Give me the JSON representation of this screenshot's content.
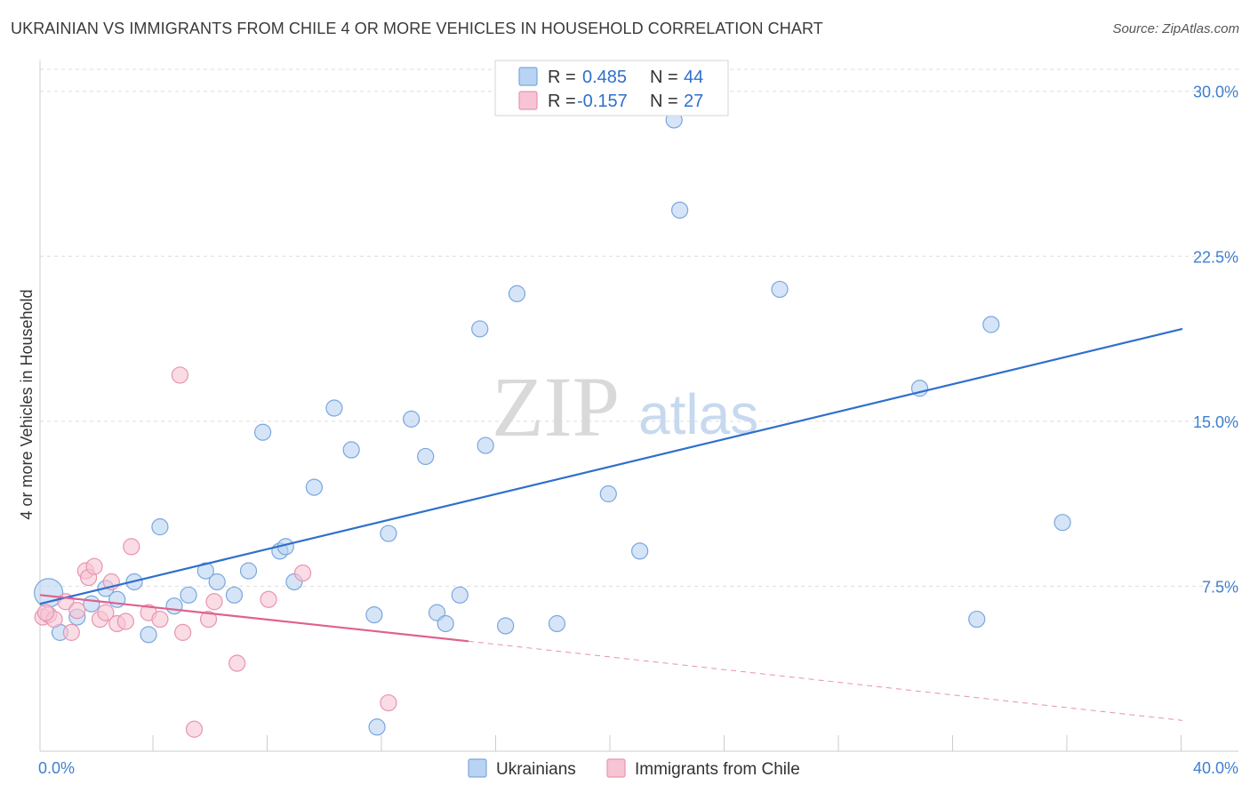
{
  "header": {
    "title": "UKRAINIAN VS IMMIGRANTS FROM CHILE 4 OR MORE VEHICLES IN HOUSEHOLD CORRELATION CHART",
    "source": "Source: ZipAtlas.com"
  },
  "legend": {
    "rows": [
      {
        "r_label": "R =",
        "r_value": "0.485",
        "n_label": "N =",
        "n_value": "44"
      },
      {
        "r_label": "R =",
        "r_value": "-0.157",
        "n_label": "N =",
        "n_value": "27"
      }
    ]
  },
  "watermark": {
    "zip": "ZIP",
    "atlas": "atlas"
  },
  "colors": {
    "ukrainians_fill": "#b9d3f2",
    "ukrainians_stroke": "#7aa6de",
    "ukrainians_line": "#2f6fcc",
    "chile_fill": "#f7c4d3",
    "chile_stroke": "#e894b0",
    "chile_line": "#e0608f",
    "tick_label": "#3f7fd0",
    "grid": "#dddddd"
  },
  "chart_data": {
    "type": "scatter",
    "title": "UKRAINIAN VS IMMIGRANTS FROM CHILE 4 OR MORE VEHICLES IN HOUSEHOLD CORRELATION CHART",
    "xlabel": "",
    "ylabel": "4 or more Vehicles in Household",
    "xlim": [
      0,
      40
    ],
    "ylim": [
      0,
      31
    ],
    "x_tick_labels": [
      "0.0%",
      "40.0%"
    ],
    "y_ticks": [
      7.5,
      15.0,
      22.5,
      30.0
    ],
    "y_tick_labels": [
      "7.5%",
      "15.0%",
      "22.5%",
      "30.0%"
    ],
    "grid": true,
    "legend_position": "top-center",
    "series": [
      {
        "name": "Ukrainians",
        "r": 0.485,
        "n": 44,
        "points": [
          [
            0.3,
            7.2
          ],
          [
            0.7,
            5.4
          ],
          [
            1.3,
            6.1
          ],
          [
            1.8,
            6.7
          ],
          [
            2.3,
            7.4
          ],
          [
            2.7,
            6.9
          ],
          [
            3.3,
            7.7
          ],
          [
            3.8,
            5.3
          ],
          [
            4.2,
            10.2
          ],
          [
            4.7,
            6.6
          ],
          [
            5.2,
            7.1
          ],
          [
            5.8,
            8.2
          ],
          [
            6.2,
            7.7
          ],
          [
            6.8,
            7.1
          ],
          [
            7.3,
            8.2
          ],
          [
            7.8,
            14.5
          ],
          [
            8.4,
            9.1
          ],
          [
            8.6,
            9.3
          ],
          [
            8.9,
            7.7
          ],
          [
            9.6,
            12.0
          ],
          [
            10.3,
            15.6
          ],
          [
            10.9,
            13.7
          ],
          [
            11.7,
            6.2
          ],
          [
            11.8,
            1.1
          ],
          [
            12.2,
            9.9
          ],
          [
            13.0,
            15.1
          ],
          [
            13.5,
            13.4
          ],
          [
            13.9,
            6.3
          ],
          [
            14.2,
            5.8
          ],
          [
            14.7,
            7.1
          ],
          [
            15.4,
            19.2
          ],
          [
            15.6,
            13.9
          ],
          [
            16.3,
            5.7
          ],
          [
            16.7,
            20.8
          ],
          [
            18.1,
            5.8
          ],
          [
            19.9,
            11.7
          ],
          [
            21.0,
            9.1
          ],
          [
            22.2,
            28.7
          ],
          [
            22.4,
            24.6
          ],
          [
            25.9,
            21.0
          ],
          [
            30.8,
            16.5
          ],
          [
            32.8,
            6.0
          ],
          [
            33.3,
            19.4
          ],
          [
            35.8,
            10.4
          ]
        ],
        "trend": {
          "x0": 0,
          "y0": 6.7,
          "x1": 40,
          "y1": 19.2
        }
      },
      {
        "name": "Immigrants from Chile",
        "r": -0.157,
        "n": 27,
        "points": [
          [
            0.1,
            6.1
          ],
          [
            0.3,
            6.2
          ],
          [
            0.5,
            6.0
          ],
          [
            0.9,
            6.8
          ],
          [
            1.1,
            5.4
          ],
          [
            1.3,
            6.4
          ],
          [
            1.6,
            8.2
          ],
          [
            1.7,
            7.9
          ],
          [
            1.9,
            8.4
          ],
          [
            2.1,
            6.0
          ],
          [
            2.3,
            6.3
          ],
          [
            2.5,
            7.7
          ],
          [
            2.7,
            5.8
          ],
          [
            3.0,
            5.9
          ],
          [
            3.2,
            9.3
          ],
          [
            3.8,
            6.3
          ],
          [
            4.2,
            6.0
          ],
          [
            4.9,
            17.1
          ],
          [
            5.0,
            5.4
          ],
          [
            5.4,
            1.0
          ],
          [
            5.9,
            6.0
          ],
          [
            6.1,
            6.8
          ],
          [
            6.9,
            4.0
          ],
          [
            8.0,
            6.9
          ],
          [
            9.2,
            8.1
          ],
          [
            12.2,
            2.2
          ],
          [
            0.2,
            6.3
          ]
        ],
        "trend": {
          "x0": 0,
          "y0": 7.1,
          "x1": 15,
          "y1": 5.0
        },
        "trend_extension": {
          "x0": 15,
          "y0": 5.0,
          "x1": 40,
          "y1": 1.4
        }
      }
    ]
  }
}
